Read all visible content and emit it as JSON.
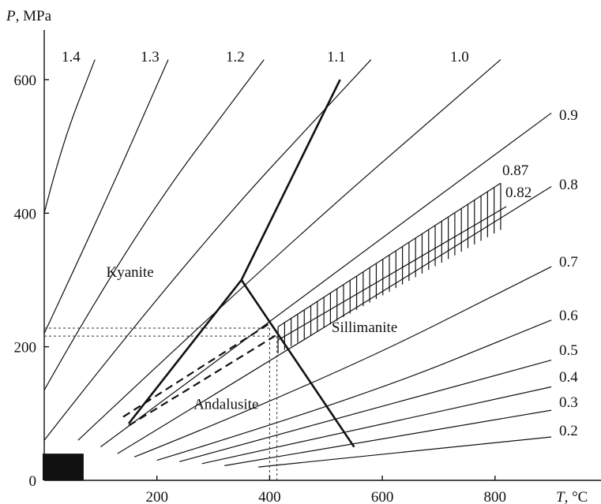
{
  "chart_data": {
    "type": "line",
    "title": "",
    "ylabel_var": "P",
    "ylabel_unit": ", MPa",
    "xlabel_var": "T",
    "xlabel_unit": ", °C",
    "xlim": [
      0,
      880
    ],
    "ylim": [
      0,
      660
    ],
    "x_ticks": [
      200,
      400,
      600,
      800
    ],
    "y_ticks": [
      0,
      200,
      400,
      600
    ],
    "grid": false,
    "isolines": [
      {
        "name": "1.4",
        "points": [
          [
            0,
            400
          ],
          [
            30,
            500
          ],
          [
            90,
            630
          ]
        ]
      },
      {
        "name": "1.3",
        "points": [
          [
            0,
            220
          ],
          [
            100,
            400
          ],
          [
            220,
            630
          ]
        ]
      },
      {
        "name": "1.2",
        "points": [
          [
            0,
            135
          ],
          [
            150,
            360
          ],
          [
            390,
            630
          ]
        ]
      },
      {
        "name": "1.1",
        "points": [
          [
            0,
            60
          ],
          [
            250,
            330
          ],
          [
            580,
            630
          ]
        ]
      },
      {
        "name": "1.0",
        "points": [
          [
            60,
            60
          ],
          [
            400,
            330
          ],
          [
            810,
            630
          ]
        ]
      },
      {
        "name": "0.9",
        "points": [
          [
            100,
            50
          ],
          [
            450,
            270
          ],
          [
            900,
            550
          ]
        ]
      },
      {
        "name": "0.8",
        "points": [
          [
            130,
            40
          ],
          [
            500,
            230
          ],
          [
            900,
            440
          ]
        ]
      },
      {
        "name": "0.7",
        "points": [
          [
            160,
            35
          ],
          [
            500,
            150
          ],
          [
            900,
            320
          ]
        ]
      },
      {
        "name": "0.6",
        "points": [
          [
            200,
            30
          ],
          [
            550,
            120
          ],
          [
            900,
            240
          ]
        ]
      },
      {
        "name": "0.5",
        "points": [
          [
            240,
            28
          ],
          [
            900,
            180
          ]
        ]
      },
      {
        "name": "0.4",
        "points": [
          [
            280,
            25
          ],
          [
            900,
            140
          ]
        ]
      },
      {
        "name": "0.3",
        "points": [
          [
            320,
            22
          ],
          [
            900,
            105
          ]
        ]
      },
      {
        "name": "0.2",
        "points": [
          [
            380,
            20
          ],
          [
            900,
            65
          ]
        ]
      }
    ],
    "band": {
      "upper_label": "0.87",
      "lower_label": "0.82",
      "upper": [
        [
          415,
          230
        ],
        [
          810,
          445
        ]
      ],
      "lower": [
        [
          415,
          210
        ],
        [
          820,
          410
        ]
      ]
    },
    "triple_point": [
      350,
      300
    ],
    "boundaries": [
      {
        "name": "Kyanite-Andalusite",
        "points": [
          [
            150,
            85
          ],
          [
            350,
            300
          ]
        ]
      },
      {
        "name": "Kyanite-Sillimanite",
        "points": [
          [
            350,
            300
          ],
          [
            525,
            600
          ]
        ]
      },
      {
        "name": "Andalusite-Sillimanite",
        "points": [
          [
            350,
            300
          ],
          [
            550,
            50
          ]
        ]
      }
    ],
    "dashed_lines": [
      {
        "points": [
          [
            140,
            95
          ],
          [
            400,
            235
          ]
        ]
      },
      {
        "points": [
          [
            150,
            82
          ],
          [
            413,
            218
          ]
        ]
      }
    ],
    "dotted_guides": [
      {
        "p": 228,
        "t": 400
      },
      {
        "p": 216,
        "t": 413
      }
    ],
    "black_box": {
      "t_max": 70,
      "p_max": 40
    },
    "region_labels": [
      {
        "text": "Kyanite",
        "t": 110,
        "p": 305
      },
      {
        "text": "Andalusite",
        "t": 265,
        "p": 107
      },
      {
        "text": "Sillimanite",
        "t": 510,
        "p": 222
      }
    ]
  }
}
